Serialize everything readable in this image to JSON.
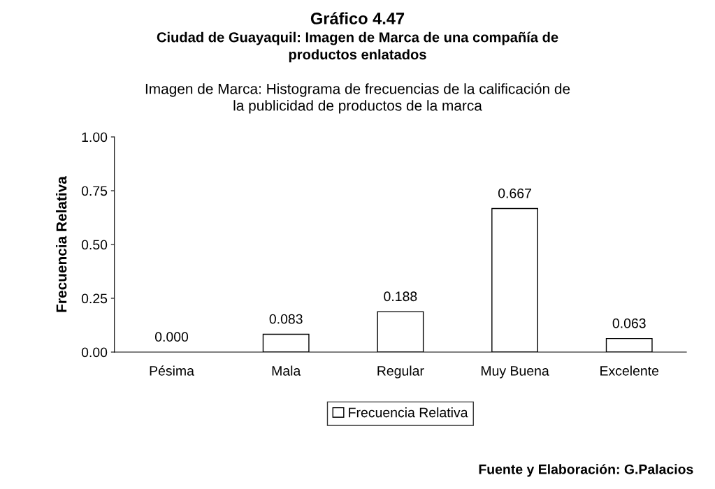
{
  "chart_data": {
    "type": "bar",
    "title": "Gráfico 4.47",
    "subtitle": "Ciudad de Guayaquil: Imagen de Marca de una compañía de\nproductos enlatados",
    "annotations": [
      "Imagen de Marca: Histograma de frecuencias de la calificación de\nla publicidad de productos de la marca",
      "Fuente y Elaboración: G.Palacios"
    ],
    "ylabel": "Frecuencia Relativa",
    "categories": [
      "Pésima",
      "Mala",
      "Regular",
      "Muy Buena",
      "Excelente"
    ],
    "series": [
      {
        "name": "Frecuencia Relativa",
        "color": "#ffffff",
        "values": [
          0.0,
          0.083,
          0.188,
          0.667,
          0.063
        ],
        "value_labels": [
          "0.000",
          "0.083",
          "0.188",
          "0.667",
          "0.063"
        ]
      }
    ],
    "ylim": [
      0,
      1
    ],
    "yticks": [
      {
        "value": 0,
        "label": "0.00"
      },
      {
        "value": 0.25,
        "label": "0.25"
      },
      {
        "value": 0.5,
        "label": "0.50"
      },
      {
        "value": 0.75,
        "label": "0.75"
      },
      {
        "value": 1,
        "label": "1.00"
      }
    ],
    "grid": false,
    "legend": "bottom"
  }
}
